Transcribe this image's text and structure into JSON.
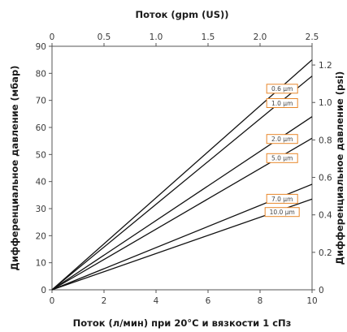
{
  "chart_data": {
    "type": "line",
    "title": "",
    "xlabel": "Поток (л/мин) при 20°C и вязкости 1 сПз",
    "ylabel": "Дифференциальное давление (мбар)",
    "x2label": "Поток (gpm (US))",
    "y2label": "Дифференциальное давление (psi)",
    "xlim": [
      0,
      10
    ],
    "ylim": [
      0,
      90
    ],
    "x2lim": [
      0,
      2.5
    ],
    "y2lim": [
      0,
      1.3
    ],
    "xticks": [
      "0",
      "2",
      "4",
      "6",
      "8",
      "10"
    ],
    "yticks": [
      "0",
      "10",
      "20",
      "30",
      "40",
      "50",
      "60",
      "70",
      "80",
      "90"
    ],
    "x2ticks": [
      "0",
      "0.5",
      "1.0",
      "1.5",
      "2.0",
      "2.5"
    ],
    "y2ticks": [
      "0",
      "0.2",
      "0.4",
      "0.6",
      "0.8",
      "1.0",
      "1.2"
    ],
    "grid": false,
    "legend": "inline labels near line ends",
    "series": [
      {
        "name": "0.6 μm",
        "x": [
          0,
          10
        ],
        "y": [
          0,
          85
        ]
      },
      {
        "name": "1.0 μm",
        "x": [
          0,
          10
        ],
        "y": [
          0,
          79
        ]
      },
      {
        "name": "2.0 μm",
        "x": [
          0,
          10
        ],
        "y": [
          0,
          64
        ]
      },
      {
        "name": "5.0 μm",
        "x": [
          0,
          10
        ],
        "y": [
          0,
          56
        ]
      },
      {
        "name": "7.0 μm",
        "x": [
          0,
          10
        ],
        "y": [
          0,
          39
        ]
      },
      {
        "name": "10.0 μm",
        "x": [
          0,
          10
        ],
        "y": [
          0,
          33.5
        ]
      }
    ],
    "colors": {
      "line": "#111111",
      "label_border": "#e8872a",
      "frame": "#555555"
    }
  }
}
